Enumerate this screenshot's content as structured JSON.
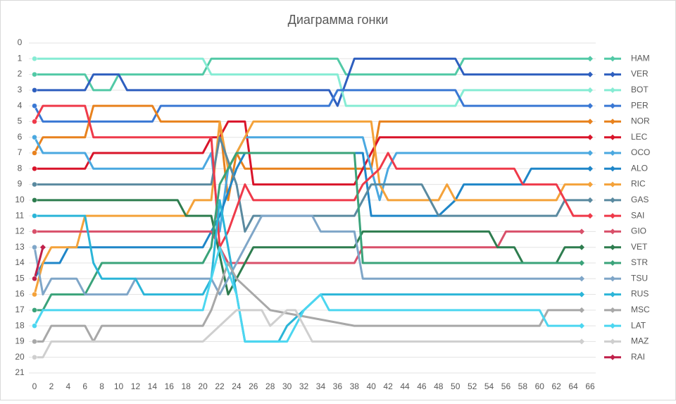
{
  "chart_data": {
    "type": "line",
    "title": "Диаграмма гонки",
    "xlim": [
      0,
      66
    ],
    "xticks": [
      0,
      2,
      4,
      6,
      8,
      10,
      12,
      14,
      16,
      18,
      20,
      22,
      24,
      26,
      28,
      30,
      32,
      34,
      36,
      38,
      40,
      42,
      44,
      46,
      48,
      50,
      52,
      54,
      56,
      58,
      60,
      62,
      64,
      66
    ],
    "ylim": [
      0,
      21
    ],
    "yticks": [
      0,
      1,
      2,
      3,
      4,
      5,
      6,
      7,
      8,
      9,
      10,
      11,
      12,
      13,
      14,
      15,
      16,
      17,
      18,
      19,
      20,
      21
    ],
    "y_reversed": true,
    "grid": true,
    "legend": "right",
    "series": [
      {
        "name": "HAM",
        "color": "#52c9a6",
        "x": [
          0,
          6,
          7,
          9,
          10,
          20,
          21,
          36,
          37,
          50,
          51,
          66
        ],
        "values": [
          2,
          2,
          3,
          3,
          2,
          2,
          1,
          1,
          2,
          2,
          1,
          1
        ]
      },
      {
        "name": "VER",
        "color": "#2e5fbf",
        "x": [
          0,
          6,
          7,
          10,
          11,
          35,
          36,
          38,
          50,
          51,
          66
        ],
        "values": [
          3,
          3,
          2,
          2,
          3,
          3,
          4,
          1,
          1,
          2,
          2
        ]
      },
      {
        "name": "BOT",
        "color": "#86ecd4",
        "x": [
          0,
          20,
          21,
          36,
          37,
          50,
          51,
          66
        ],
        "values": [
          1,
          1,
          2,
          2,
          4,
          4,
          3,
          3
        ]
      },
      {
        "name": "PER",
        "color": "#3a78d4",
        "x": [
          0,
          1,
          14,
          15,
          35,
          36,
          50,
          51,
          66
        ],
        "values": [
          4,
          5,
          5,
          4,
          4,
          3,
          3,
          4,
          4
        ]
      },
      {
        "name": "NOR",
        "color": "#e8821e",
        "x": [
          0,
          1,
          6,
          7,
          14,
          15,
          22,
          23,
          24,
          25,
          40,
          41,
          66
        ],
        "values": [
          7,
          6,
          6,
          4,
          4,
          5,
          5,
          10,
          7,
          8,
          8,
          5,
          5
        ]
      },
      {
        "name": "LEC",
        "color": "#d9142a",
        "x": [
          0,
          6,
          7,
          20,
          21,
          22,
          23,
          25,
          26,
          38,
          39,
          40,
          41,
          66
        ],
        "values": [
          8,
          8,
          7,
          7,
          6,
          6,
          5,
          5,
          9,
          9,
          8,
          7,
          6,
          6
        ]
      },
      {
        "name": "OCO",
        "color": "#4aa8e0",
        "x": [
          0,
          1,
          6,
          7,
          20,
          21,
          22,
          23,
          25,
          39,
          41,
          42,
          43,
          66
        ],
        "values": [
          6,
          7,
          7,
          8,
          8,
          7,
          12,
          8,
          6,
          6,
          10,
          8,
          7,
          7
        ]
      },
      {
        "name": "ALO",
        "color": "#1f86c8",
        "x": [
          0,
          1,
          3,
          4,
          20,
          21,
          22,
          24,
          25,
          39,
          40,
          45,
          48,
          50,
          51,
          58,
          59,
          66
        ],
        "values": [
          15,
          14,
          14,
          13,
          13,
          12,
          11,
          8,
          7,
          7,
          11,
          11,
          11,
          10,
          9,
          9,
          8,
          8
        ]
      },
      {
        "name": "RIC",
        "color": "#f4a23a",
        "x": [
          0,
          1,
          2,
          5,
          6,
          18,
          19,
          21,
          22,
          23,
          24,
          25,
          26,
          40,
          41,
          42,
          48,
          49,
          50,
          62,
          63,
          66
        ],
        "values": [
          16,
          14,
          13,
          13,
          11,
          11,
          10,
          10,
          5,
          8,
          7,
          6,
          5,
          5,
          9,
          10,
          10,
          9,
          10,
          10,
          9,
          9
        ]
      },
      {
        "name": "GAS",
        "color": "#5a8aa0",
        "x": [
          0,
          21,
          22,
          24,
          25,
          26,
          38,
          40,
          46,
          47,
          48,
          62,
          63,
          66
        ],
        "values": [
          9,
          9,
          6,
          9,
          12,
          11,
          11,
          9,
          9,
          10,
          11,
          11,
          10,
          10
        ]
      },
      {
        "name": "SAI",
        "color": "#ef3a4a",
        "x": [
          0,
          1,
          6,
          7,
          20,
          21,
          22,
          23,
          25,
          26,
          38,
          39,
          41,
          42,
          43,
          57,
          58,
          62,
          64,
          66
        ],
        "values": [
          5,
          4,
          4,
          6,
          6,
          6,
          13,
          12,
          9,
          10,
          10,
          9,
          8,
          7,
          8,
          8,
          9,
          9,
          11,
          11
        ]
      },
      {
        "name": "GIO",
        "color": "#d9506a",
        "x": [
          0,
          21,
          22,
          23,
          38,
          39,
          55,
          56,
          65
        ],
        "values": [
          12,
          12,
          13,
          14,
          14,
          13,
          13,
          12,
          12
        ]
      },
      {
        "name": "VET",
        "color": "#2e7d4f",
        "x": [
          0,
          17,
          18,
          21,
          23,
          24,
          25,
          26,
          38,
          39,
          54,
          55,
          57,
          58,
          62,
          63,
          65
        ],
        "values": [
          10,
          10,
          11,
          11,
          16,
          15,
          14,
          13,
          13,
          12,
          12,
          13,
          13,
          14,
          14,
          13,
          13
        ]
      },
      {
        "name": "STR",
        "color": "#3aa37a",
        "x": [
          0,
          1,
          2,
          6,
          8,
          20,
          21,
          22,
          24,
          38,
          39,
          65
        ],
        "values": [
          17,
          17,
          16,
          16,
          14,
          14,
          13,
          9,
          7,
          7,
          14,
          14
        ]
      },
      {
        "name": "TSU",
        "color": "#7fa6c8",
        "x": [
          0,
          1,
          2,
          5,
          6,
          11,
          12,
          21,
          22,
          23,
          26,
          27,
          33,
          34,
          38,
          39,
          65
        ],
        "values": [
          13,
          16,
          15,
          15,
          16,
          16,
          15,
          15,
          16,
          15,
          12,
          11,
          11,
          12,
          12,
          15,
          15
        ]
      },
      {
        "name": "RUS",
        "color": "#2bb5d8",
        "x": [
          0,
          6,
          7,
          8,
          12,
          13,
          20,
          21,
          22,
          23,
          25,
          29,
          30,
          32,
          34,
          65
        ],
        "values": [
          11,
          11,
          14,
          15,
          15,
          16,
          16,
          15,
          10,
          13,
          19,
          19,
          18,
          17,
          16,
          16
        ]
      },
      {
        "name": "MSC",
        "color": "#a8a8a8",
        "x": [
          0,
          1,
          2,
          6,
          7,
          8,
          20,
          21,
          23,
          24,
          26,
          28,
          38,
          60,
          61,
          65
        ],
        "values": [
          19,
          19,
          18,
          18,
          19,
          18,
          18,
          17,
          14,
          15,
          16,
          17,
          18,
          18,
          17,
          17
        ]
      },
      {
        "name": "LAT",
        "color": "#4cd6f0",
        "x": [
          0,
          1,
          20,
          22,
          24,
          25,
          30,
          32,
          34,
          35,
          60,
          61,
          65
        ],
        "values": [
          18,
          17,
          17,
          13,
          16,
          19,
          19,
          17,
          16,
          17,
          17,
          18,
          18
        ]
      },
      {
        "name": "MAZ",
        "color": "#cfcfcf",
        "x": [
          0,
          1,
          2,
          20,
          22,
          24,
          27,
          28,
          30,
          31,
          32,
          33,
          65
        ],
        "values": [
          20,
          20,
          19,
          19,
          18,
          17,
          17,
          18,
          17,
          17,
          18,
          19,
          19
        ]
      },
      {
        "name": "RAI",
        "color": "#c0204a",
        "x": [
          0,
          1
        ],
        "values": [
          15,
          13
        ]
      }
    ]
  }
}
